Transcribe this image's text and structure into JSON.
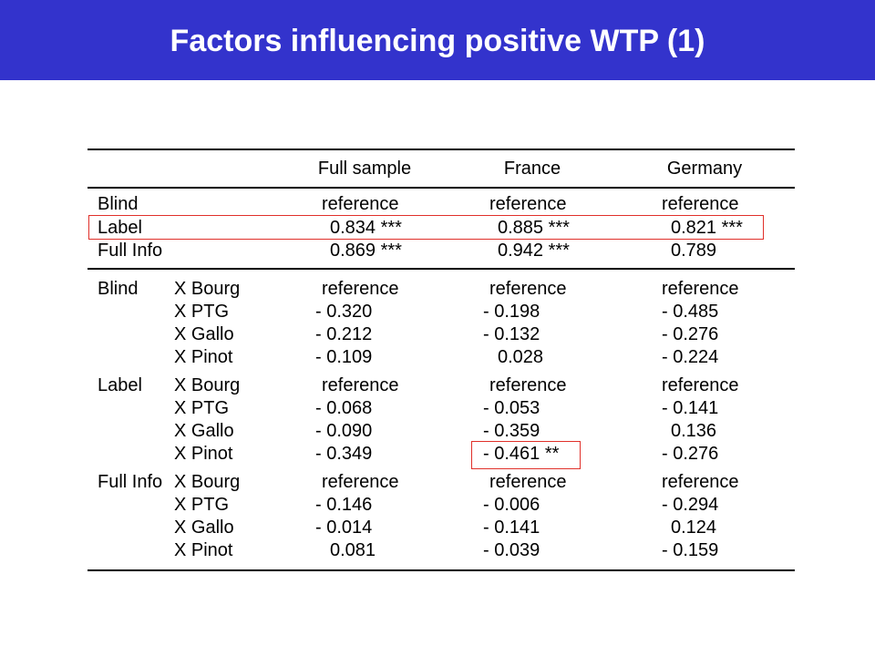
{
  "title": "Factors influencing positive WTP (1)",
  "highlight_color": "#e0302a",
  "header_color": "#3333cc",
  "columns": [
    "Full sample",
    "France",
    "Germany"
  ],
  "rows": [
    {
      "group": "Blind",
      "factor": "",
      "values": [
        "reference",
        "reference",
        "reference"
      ]
    },
    {
      "group": "Label",
      "factor": "",
      "values": [
        "0.834 ***",
        "0.885 ***",
        "0.821 ***"
      ]
    },
    {
      "group": "Full Info",
      "factor": "",
      "values": [
        "0.869 ***",
        "0.942 ***",
        "0.789"
      ]
    },
    {
      "group": "Blind",
      "factor": "X Bourg",
      "values": [
        "reference",
        "reference",
        "reference"
      ]
    },
    {
      "group": "",
      "factor": "X PTG",
      "values": [
        "- 0.320",
        "- 0.198",
        "- 0.485"
      ]
    },
    {
      "group": "",
      "factor": "X Gallo",
      "values": [
        "- 0.212",
        "- 0.132",
        "- 0.276"
      ]
    },
    {
      "group": "",
      "factor": "X Pinot",
      "values": [
        "- 0.109",
        "0.028",
        "- 0.224"
      ]
    },
    {
      "group": "Label",
      "factor": "X Bourg",
      "values": [
        "reference",
        "reference",
        "reference"
      ]
    },
    {
      "group": "",
      "factor": "X PTG",
      "values": [
        "- 0.068",
        "- 0.053",
        "- 0.141"
      ]
    },
    {
      "group": "",
      "factor": "X Gallo",
      "values": [
        "- 0.090",
        "- 0.359",
        "0.136"
      ]
    },
    {
      "group": "",
      "factor": "X Pinot",
      "values": [
        "- 0.349",
        "- 0.461 **",
        "- 0.276"
      ]
    },
    {
      "group": "Full Info",
      "factor": "X Bourg",
      "values": [
        "reference",
        "reference",
        "reference"
      ]
    },
    {
      "group": "",
      "factor": "X PTG",
      "values": [
        "- 0.146",
        "- 0.006",
        "- 0.294"
      ]
    },
    {
      "group": "",
      "factor": "X Gallo",
      "values": [
        "- 0.014",
        "- 0.141",
        "0.124"
      ]
    },
    {
      "group": "",
      "factor": "X Pinot",
      "values": [
        "0.081",
        "- 0.039",
        "- 0.159"
      ]
    }
  ]
}
